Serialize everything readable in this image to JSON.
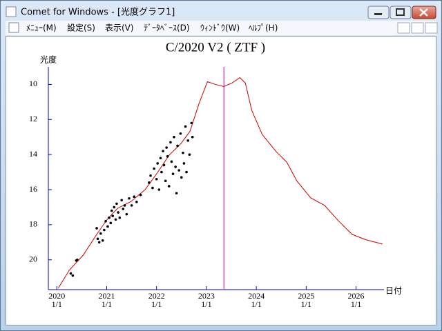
{
  "window": {
    "title": "Comet for Windows - [光度グラフ1]",
    "menu": [
      "ﾒﾆｭｰ(M)",
      "設定(S)",
      "表示(V)",
      "ﾃﾞｰﾀﾍﾞｰｽ(D)",
      "ｳｨﾝﾄﾞｳ(W)",
      "ﾍﾙﾌﾟ(H)"
    ]
  },
  "chart_data": {
    "type": "line",
    "title": "C/2020 V2 ( ZTF )",
    "ylabel": "光度",
    "xlabel": "日付",
    "xlim": [
      2019.83,
      2026.56
    ],
    "ylim": [
      21.7,
      9.0
    ],
    "grid": false,
    "axis_color": "#0000cc",
    "xticks": [
      {
        "value": 2020,
        "label": "2020\n1/1"
      },
      {
        "value": 2021,
        "label": "2021\n1/1"
      },
      {
        "value": 2022,
        "label": "2022\n1/1"
      },
      {
        "value": 2023,
        "label": "2023\n1/1"
      },
      {
        "value": 2024,
        "label": "2024\n1/1"
      },
      {
        "value": 2025,
        "label": "2025\n1/1"
      },
      {
        "value": 2026,
        "label": "2026\n1/1"
      }
    ],
    "yticks": [
      10,
      12,
      14,
      16,
      18,
      20
    ],
    "vlines": [
      {
        "x": 2023.35,
        "color": "#cc00cc"
      }
    ],
    "series": [
      {
        "type": "line",
        "color": "#cc0000",
        "x": [
          2020.03,
          2020.25,
          2020.53,
          2020.8,
          2021.01,
          2021.22,
          2021.49,
          2021.77,
          2022.02,
          2022.25,
          2022.49,
          2022.67,
          2022.85,
          2023.02,
          2023.18,
          2023.35,
          2023.51,
          2023.67,
          2023.78,
          2023.91,
          2024.12,
          2024.4,
          2024.61,
          2024.81,
          2025.09,
          2025.37,
          2025.64,
          2025.92,
          2026.2,
          2026.53
        ],
        "values": [
          21.61,
          20.59,
          19.73,
          18.55,
          17.69,
          17.06,
          16.67,
          16.0,
          15.02,
          14.04,
          13.37,
          12.67,
          11.1,
          9.84,
          10.0,
          10.12,
          9.92,
          9.61,
          9.92,
          11.49,
          12.86,
          13.84,
          14.43,
          15.49,
          16.47,
          16.9,
          17.76,
          18.55,
          18.86,
          19.1
        ]
      },
      {
        "type": "scatter",
        "color": "#000000",
        "x": [
          2020.28,
          2020.32,
          2020.39,
          2020.41,
          2020.8,
          2020.82,
          2020.85,
          2020.88,
          2020.92,
          2020.95,
          2020.98,
          2021.02,
          2021.05,
          2021.08,
          2021.1,
          2021.12,
          2021.15,
          2021.18,
          2021.2,
          2021.23,
          2021.26,
          2021.3,
          2021.33,
          2021.36,
          2021.4,
          2021.45,
          2021.5,
          2021.55,
          2021.6,
          2021.68,
          2021.85,
          2021.88,
          2021.92,
          2021.95,
          2022.0,
          2022.02,
          2022.05,
          2022.08,
          2022.1,
          2022.13,
          2022.15,
          2022.18,
          2022.2,
          2022.22,
          2022.25,
          2022.28,
          2022.3,
          2022.33,
          2022.35,
          2022.38,
          2022.4,
          2022.42,
          2022.45,
          2022.48,
          2022.5,
          2022.53,
          2022.55,
          2022.58,
          2022.6,
          2022.63,
          2022.66,
          2022.7,
          2022.72
        ],
        "values": [
          20.78,
          20.9,
          20.04,
          20.0,
          18.2,
          18.8,
          19.0,
          18.5,
          18.9,
          18.3,
          17.8,
          18.1,
          17.6,
          17.9,
          17.2,
          17.5,
          17.0,
          17.7,
          16.8,
          17.3,
          17.6,
          16.6,
          17.1,
          16.9,
          17.4,
          16.5,
          16.9,
          16.4,
          16.7,
          16.3,
          15.6,
          15.2,
          15.9,
          14.8,
          15.4,
          14.5,
          16.0,
          14.2,
          15.0,
          13.8,
          14.6,
          15.5,
          13.6,
          14.1,
          15.8,
          13.3,
          14.4,
          15.1,
          13.0,
          14.7,
          16.2,
          13.5,
          14.9,
          12.8,
          15.3,
          13.9,
          14.5,
          12.4,
          15.0,
          13.2,
          14.0,
          12.2,
          13.0
        ]
      }
    ]
  }
}
